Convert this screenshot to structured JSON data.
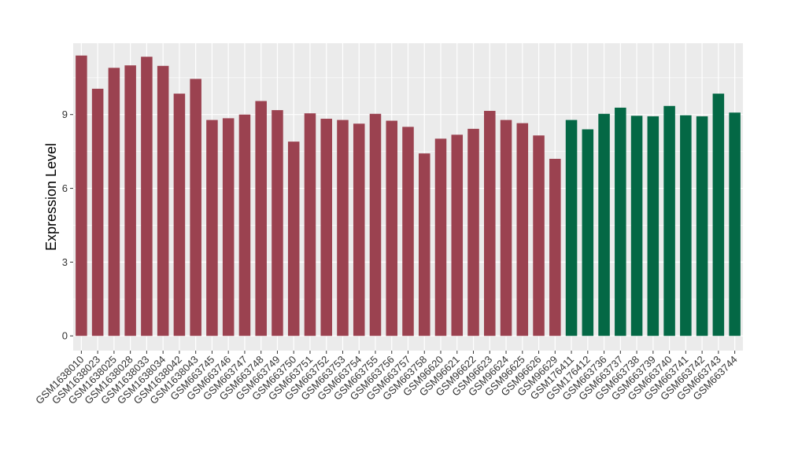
{
  "chart_data": {
    "type": "bar",
    "ylabel": "Expression Level",
    "ylim": [
      -0.6,
      11.9
    ],
    "yticks": [
      0,
      3,
      6,
      9
    ],
    "grid": true,
    "background": "#EBEBEB",
    "categories": [
      "GSM1638010",
      "GSM1638023",
      "GSM1638025",
      "GSM1638028",
      "GSM1638033",
      "GSM1638034",
      "GSM1638042",
      "GSM1638043",
      "GSM663745",
      "GSM663746",
      "GSM663747",
      "GSM663748",
      "GSM663749",
      "GSM663750",
      "GSM663751",
      "GSM663752",
      "GSM663753",
      "GSM663754",
      "GSM663755",
      "GSM663756",
      "GSM663757",
      "GSM663758",
      "GSM96620",
      "GSM96621",
      "GSM96622",
      "GSM96623",
      "GSM96624",
      "GSM96625",
      "GSM96626",
      "GSM96629",
      "GSM176411",
      "GSM176412",
      "GSM663736",
      "GSM663737",
      "GSM663738",
      "GSM663739",
      "GSM663740",
      "GSM663741",
      "GSM663742",
      "GSM663743",
      "GSM663744"
    ],
    "values": [
      11.4,
      10.05,
      10.9,
      11.0,
      11.35,
      10.98,
      9.85,
      10.45,
      8.78,
      8.85,
      9.0,
      9.55,
      9.18,
      7.9,
      9.05,
      8.83,
      8.78,
      8.63,
      9.03,
      8.75,
      8.5,
      7.42,
      8.02,
      8.18,
      8.42,
      9.15,
      8.78,
      8.65,
      8.15,
      7.2,
      8.78,
      8.4,
      9.03,
      9.28,
      8.95,
      8.93,
      9.35,
      8.97,
      8.93,
      9.85,
      9.08
    ],
    "groups": [
      "A",
      "A",
      "A",
      "A",
      "A",
      "A",
      "A",
      "A",
      "A",
      "A",
      "A",
      "A",
      "A",
      "A",
      "A",
      "A",
      "A",
      "A",
      "A",
      "A",
      "A",
      "A",
      "A",
      "A",
      "A",
      "A",
      "A",
      "A",
      "A",
      "A",
      "B",
      "B",
      "B",
      "B",
      "B",
      "B",
      "B",
      "B",
      "B",
      "B",
      "B"
    ],
    "colors": {
      "A": "#9B4250",
      "B": "#046845"
    }
  }
}
